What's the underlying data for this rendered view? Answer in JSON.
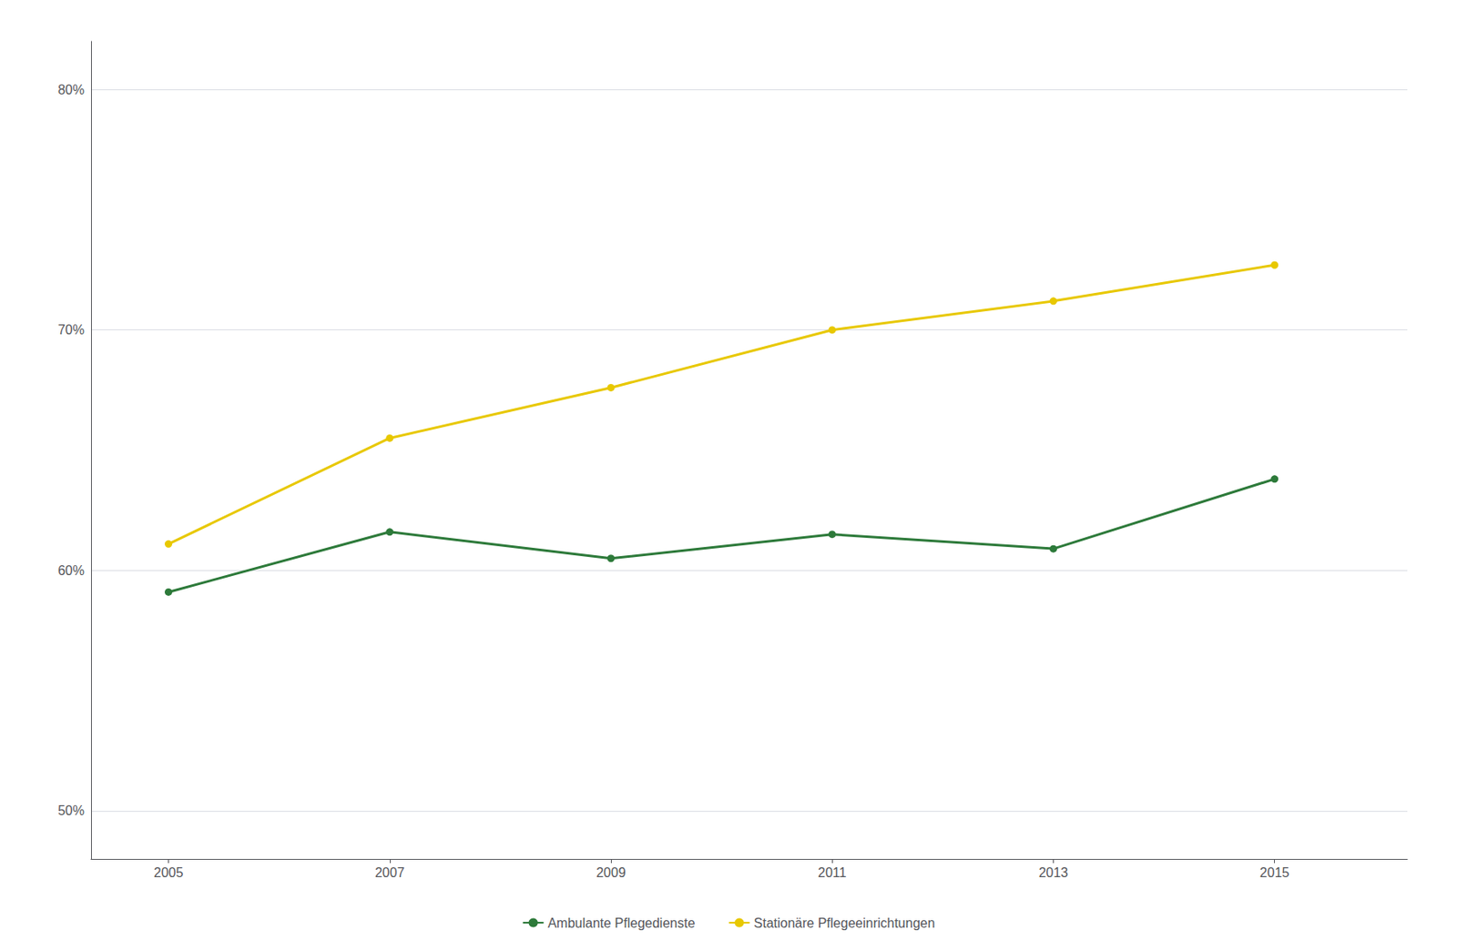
{
  "chart_data": {
    "type": "line",
    "x": [
      2005,
      2007,
      2009,
      2011,
      2013,
      2015
    ],
    "series": [
      {
        "name": "Stationäre Pflegeeinrichtungen",
        "color": "#e8c800",
        "marker": "circle",
        "values": [
          0.611,
          0.655,
          0.676,
          0.7,
          0.712,
          0.727
        ]
      },
      {
        "name": "Ambulante Pflegedienste",
        "color": "#2d7a3a",
        "marker": "circle",
        "values": [
          0.591,
          0.616,
          0.605,
          0.615,
          0.609,
          0.638
        ]
      }
    ],
    "xlim": [
      2004.3,
      2016.2
    ],
    "xticks": [
      2005,
      2007,
      2009,
      2011,
      2013,
      2015
    ],
    "ylim": [
      0.48,
      0.82
    ],
    "yticks": [
      {
        "value": 0.5,
        "label": "50%"
      },
      {
        "value": 0.6,
        "label": "60%"
      },
      {
        "value": 0.7,
        "label": "70%"
      },
      {
        "value": 0.8,
        "label": "80%"
      }
    ],
    "grid": true,
    "legend": "bottom"
  }
}
